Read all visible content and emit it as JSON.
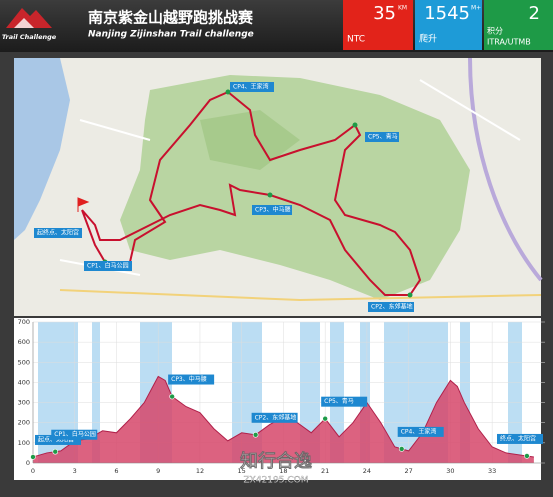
{
  "header": {
    "title": "南京紫金山越野跑挑战赛",
    "subtitle": "Nanjing Zijinshan Trail challenge",
    "logo": "Trail Challenge",
    "stats": [
      {
        "value": 35,
        "unit": "KM",
        "label": "NTC"
      },
      {
        "value": 1545,
        "unit": "M+",
        "label": "爬升"
      },
      {
        "value": 2,
        "label": "积分",
        "label2": "ITRA/UTMB"
      }
    ]
  },
  "map": {
    "labels": [
      "CP4、王家湾",
      "CP5、青马",
      "CP3、中马腰",
      "起终点、太阳宫",
      "CP1、白马公园",
      "CP2、东郊基地"
    ]
  },
  "chart_data": {
    "type": "area",
    "color": "#d6466a",
    "x": [
      0,
      1,
      2,
      3,
      4,
      5,
      6,
      7,
      8,
      9,
      9.5,
      10,
      11,
      12,
      13,
      14,
      15,
      16,
      17,
      18,
      19,
      20,
      21,
      22,
      23,
      24,
      25,
      26,
      27,
      28,
      29,
      30,
      30.5,
      31,
      32,
      33,
      34,
      35,
      36
    ],
    "values": [
      30,
      50,
      60,
      110,
      120,
      160,
      150,
      220,
      300,
      430,
      410,
      330,
      280,
      250,
      170,
      110,
      150,
      140,
      190,
      230,
      200,
      150,
      220,
      130,
      200,
      300,
      200,
      80,
      60,
      150,
      300,
      410,
      380,
      300,
      170,
      80,
      50,
      40,
      30
    ],
    "xlim": [
      0,
      36.8
    ],
    "ylim": [
      0,
      700
    ],
    "xticks": [
      0,
      3,
      6,
      9,
      12,
      15,
      18,
      21,
      24,
      27,
      30,
      33
    ],
    "yticks": [
      0,
      100,
      200,
      300,
      400,
      500,
      600,
      700
    ],
    "grid": true,
    "annotations": [
      {
        "x": 0,
        "label": "起点、太阳宫"
      },
      {
        "x": 1.6,
        "label": "CP1、白马公园"
      },
      {
        "x": 10,
        "label": "CP3、中马腰"
      },
      {
        "x": 16,
        "label": "CP2、东郊基地"
      },
      {
        "x": 21,
        "label": "CP5、青马"
      },
      {
        "x": 26.5,
        "label": "CP4、王家湾"
      },
      {
        "x": 35.5,
        "label": "终点、太阳宫"
      }
    ]
  },
  "watermark": {
    "brand": "知行合逸",
    "url": "ZX42195.COM"
  }
}
